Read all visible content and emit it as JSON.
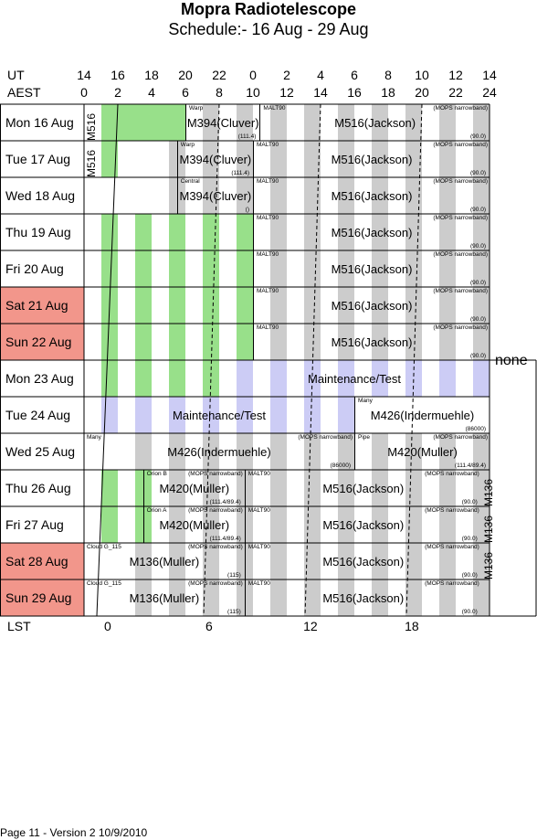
{
  "title": "Mopra Radiotelescope",
  "subtitle": "Schedule:- 16 Aug - 29 Aug",
  "axes": {
    "ut_label": "UT",
    "aest_label": "AEST",
    "lst_label": "LST",
    "ut_ticks": [
      "14",
      "16",
      "18",
      "20",
      "22",
      "0",
      "2",
      "4",
      "6",
      "8",
      "10",
      "12",
      "14"
    ],
    "aest_ticks": [
      "0",
      "2",
      "4",
      "6",
      "8",
      "10",
      "12",
      "14",
      "16",
      "18",
      "20",
      "22",
      "24"
    ],
    "lst_ticks": [
      "0",
      "6",
      "12",
      "18"
    ]
  },
  "colors": {
    "green": "#98e08a",
    "gray": "#cccccc",
    "lavender": "#ccccf5",
    "weekend": "#f2968b"
  },
  "days": [
    {
      "label": "Mon  16 Aug",
      "weekend": false
    },
    {
      "label": "Tue   17 Aug",
      "weekend": false
    },
    {
      "label": "Wed  18 Aug",
      "weekend": false
    },
    {
      "label": "Thu   19 Aug",
      "weekend": false
    },
    {
      "label": "Fri    20 Aug",
      "weekend": false
    },
    {
      "label": "Sat   21 Aug",
      "weekend": true
    },
    {
      "label": "Sun   22 Aug",
      "weekend": true
    },
    {
      "label": "Mon  23 Aug",
      "weekend": false
    },
    {
      "label": "Tue   24 Aug",
      "weekend": false
    },
    {
      "label": "Wed  25 Aug",
      "weekend": false
    },
    {
      "label": "Thu   26 Aug",
      "weekend": false
    },
    {
      "label": "Fri    27 Aug",
      "weekend": false
    },
    {
      "label": "Sat   28 Aug",
      "weekend": true
    },
    {
      "label": "Sun   29 Aug",
      "weekend": true
    }
  ],
  "vertical_labels": [
    {
      "text": "M516",
      "row": 0,
      "aest": 0.1
    },
    {
      "text": "M516",
      "row": 1,
      "aest": 0.1
    },
    {
      "text": "M136",
      "row": 10,
      "aest": 23.6
    },
    {
      "text": "M136",
      "row": 11,
      "aest": 23.6
    },
    {
      "text": "M136",
      "row": 12,
      "aest": 23.6
    }
  ],
  "side_note": "none",
  "footer": "Page 11 - Version 2  10/9/2010",
  "rows": [
    {
      "green": [
        1,
        2,
        3,
        4,
        5
      ],
      "gray": [
        7,
        9,
        11,
        13,
        15,
        17,
        19,
        21,
        23
      ],
      "blocks": [
        {
          "start": 6,
          "end": 10.4,
          "tl": "Warp",
          "main": "M394(Cluver)",
          "br": "(111.4)"
        },
        {
          "start": 10.4,
          "end": 24,
          "tl": "MALT90",
          "main": "M516(Jackson)",
          "tr": "(MOPS narrowband)",
          "br": "(90.0)"
        }
      ]
    },
    {
      "green": [
        1
      ],
      "gray": [
        5,
        7,
        9,
        11,
        13,
        15,
        17,
        19,
        21,
        23
      ],
      "blocks": [
        {
          "start": 5.5,
          "end": 10,
          "tl": "Warp",
          "main": "M394(Cluver)",
          "br": "(111.4)"
        },
        {
          "start": 10,
          "end": 24,
          "tl": "MALT90",
          "main": "M516(Jackson)",
          "tr": "(MOPS narrowband)",
          "br": "(90.0)"
        }
      ]
    },
    {
      "green": [],
      "gray": [
        5,
        7,
        9,
        11,
        13,
        15,
        17,
        19,
        21,
        23
      ],
      "blocks": [
        {
          "start": 5.5,
          "end": 10,
          "tl": "Central",
          "main": "M394(Cluver)",
          "br": "()"
        },
        {
          "start": 10,
          "end": 24,
          "tl": "MALT90",
          "main": "M516(Jackson)",
          "tr": "(MOPS narrowband)",
          "br": "(90.0)"
        }
      ]
    },
    {
      "green": [
        1,
        3,
        5,
        7,
        9
      ],
      "gray": [
        11,
        13,
        15,
        17,
        19,
        21,
        23
      ],
      "blocks": [
        {
          "start": 10,
          "end": 24,
          "tl": "MALT90",
          "main": "M516(Jackson)",
          "tr": "(MOPS narrowband)",
          "br": "(90.0)"
        }
      ]
    },
    {
      "green": [
        1,
        3,
        5,
        7,
        9
      ],
      "gray": [
        11,
        13,
        15,
        17,
        19,
        21,
        23
      ],
      "blocks": [
        {
          "start": 10,
          "end": 24,
          "tl": "MALT90",
          "main": "M516(Jackson)",
          "tr": "(MOPS narrowband)",
          "br": "(90.0)"
        }
      ]
    },
    {
      "green": [
        1,
        3,
        5,
        7,
        9
      ],
      "gray": [
        11,
        13,
        15,
        17,
        19,
        21,
        23
      ],
      "blocks": [
        {
          "start": 10,
          "end": 24,
          "tl": "MALT90",
          "main": "M516(Jackson)",
          "tr": "(MOPS narrowband)",
          "br": "(90.0)"
        }
      ]
    },
    {
      "green": [
        1,
        3,
        5,
        7,
        9
      ],
      "gray": [
        11,
        13,
        15,
        17,
        19,
        21,
        23
      ],
      "blocks": [
        {
          "start": 10,
          "end": 24,
          "tl": "MALT90",
          "main": "M516(Jackson)",
          "tr": "(MOPS narrowband)",
          "br": "(90.0)"
        }
      ]
    },
    {
      "green": [
        1,
        3,
        5,
        7
      ],
      "gray": [],
      "lavender": [
        9,
        11,
        13,
        15,
        17,
        19,
        21,
        23
      ],
      "blocks": [
        {
          "start": 8,
          "end": 24,
          "main": "Maintenance/Test",
          "nodivider": true
        }
      ]
    },
    {
      "green": [],
      "gray": [],
      "lavender": [
        1,
        3,
        5,
        7,
        9,
        11,
        13,
        15
      ],
      "blocks": [
        {
          "start": 0,
          "end": 16,
          "main": "Maintenance/Test",
          "nodivider": true
        },
        {
          "start": 16,
          "end": 24,
          "tl": "Many",
          "main": "M426(Indermuehle)",
          "br": "(86000)"
        }
      ]
    },
    {
      "green": [],
      "gray": [
        3,
        5,
        7,
        9,
        11,
        13,
        15,
        17,
        19,
        21,
        23
      ],
      "blocks": [
        {
          "start": 0,
          "end": 16,
          "tl": "Many",
          "main": "M426(Indermuehle)",
          "tr": "(MOPS narrowband)",
          "br": "(86000)",
          "nodivider": true
        },
        {
          "start": 16,
          "end": 24,
          "tl": "Pipe",
          "main": "M420(Muller)",
          "tr": "(MOPS narrowband)",
          "br": "(111.4/89.4)"
        }
      ]
    },
    {
      "green": [
        1,
        3
      ],
      "gray": [
        5,
        7,
        9,
        11,
        13,
        15,
        17,
        19,
        21,
        23
      ],
      "blocks": [
        {
          "start": 3.5,
          "end": 9.5,
          "tl": "Orion B",
          "main": "M420(Muller)",
          "tr": "(MOPS narrowband)",
          "br": "(111.4/89.4)"
        },
        {
          "start": 9.5,
          "end": 23.5,
          "tl": "MALT90",
          "main": "M516(Jackson)",
          "tr": "(MOPS narrowband)",
          "br": "(90.0)"
        }
      ]
    },
    {
      "green": [
        1,
        3
      ],
      "gray": [
        5,
        7,
        9,
        11,
        13,
        15,
        17,
        19,
        21,
        23
      ],
      "blocks": [
        {
          "start": 3.5,
          "end": 9.5,
          "tl": "Orion A",
          "main": "M420(Muller)",
          "tr": "(MOPS narrowband)",
          "br": "(111.4/89.4)"
        },
        {
          "start": 9.5,
          "end": 23.5,
          "tl": "MALT90",
          "main": "M516(Jackson)",
          "tr": "(MOPS narrowband)",
          "br": "(90.0)"
        }
      ]
    },
    {
      "green": [],
      "gray": [
        3,
        5,
        7,
        9,
        11,
        13,
        15,
        17,
        19,
        21,
        23
      ],
      "blocks": [
        {
          "start": 0,
          "end": 9.5,
          "tl": "Cloud G_115",
          "main": "M136(Muller)",
          "tr": "(MOPS narrowband)",
          "br": "(115)",
          "nodivider": true
        },
        {
          "start": 9.5,
          "end": 23.5,
          "tl": "MALT90",
          "main": "M516(Jackson)",
          "tr": "(MOPS narrowband)",
          "br": "(90.0)"
        }
      ]
    },
    {
      "green": [],
      "gray": [
        3,
        5,
        7,
        9,
        11,
        13,
        15,
        17,
        19,
        21,
        23
      ],
      "blocks": [
        {
          "start": 0,
          "end": 9.5,
          "tl": "Cloud G_115",
          "main": "M136(Muller)",
          "tr": "(MOPS narrowband)",
          "br": "(115)",
          "nodivider": true
        },
        {
          "start": 9.5,
          "end": 23.5,
          "tl": "MALT90",
          "main": "M516(Jackson)",
          "tr": "(MOPS narrowband)",
          "br": "(90.0)"
        }
      ]
    }
  ]
}
